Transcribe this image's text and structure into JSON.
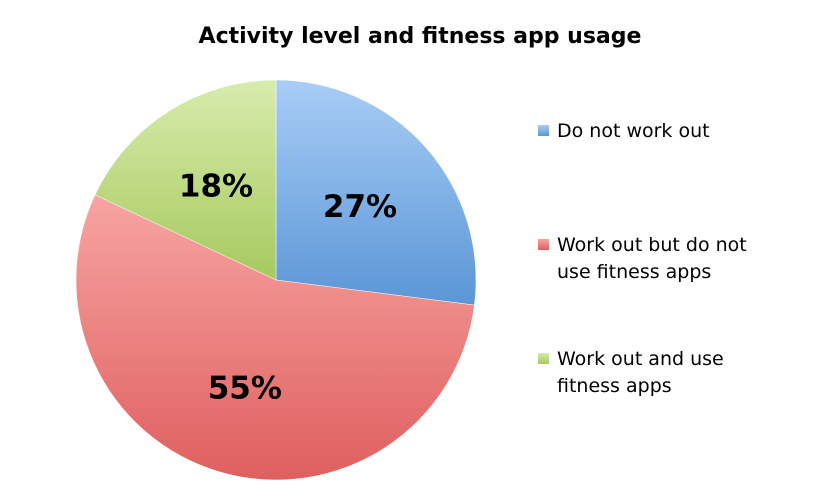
{
  "chart_data": {
    "type": "pie",
    "title": "Activity level and fitness app usage",
    "slices": [
      {
        "label": "Do not work out",
        "value": 27,
        "display": "27%",
        "color": "#5a96d6",
        "color_light": "#a9cdf6"
      },
      {
        "label": "Work out but do not use fitness apps",
        "value": 55,
        "display": "55%",
        "color": "#df5f5f",
        "color_light": "#f7a5a2"
      },
      {
        "label": "Work out and use fitness apps",
        "value": 18,
        "display": "18%",
        "color": "#a6c95f",
        "color_light": "#d8ecad"
      }
    ],
    "start": "12 o'clock",
    "direction": "clockwise",
    "legend_position": "right"
  }
}
